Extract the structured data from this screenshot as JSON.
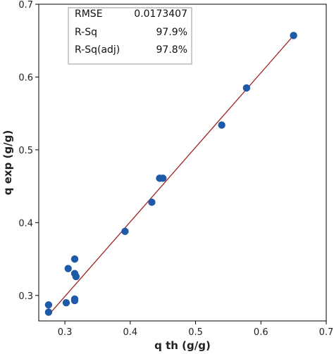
{
  "chart_data": {
    "type": "scatter",
    "xlabel": "q th (g/g)",
    "ylabel": "q exp (g/g)",
    "xlim": [
      0.26,
      0.7
    ],
    "ylim": [
      0.265,
      0.7
    ],
    "x_ticks": [
      "0.3",
      "0.4",
      "0.5",
      "0.6",
      "0.7"
    ],
    "y_ticks": [
      "0.3",
      "0.4",
      "0.5",
      "0.6",
      "0.7"
    ],
    "grid": false,
    "points": [
      {
        "x": 0.275,
        "y": 0.277
      },
      {
        "x": 0.275,
        "y": 0.287
      },
      {
        "x": 0.302,
        "y": 0.29
      },
      {
        "x": 0.315,
        "y": 0.295
      },
      {
        "x": 0.315,
        "y": 0.293
      },
      {
        "x": 0.305,
        "y": 0.337
      },
      {
        "x": 0.315,
        "y": 0.35
      },
      {
        "x": 0.315,
        "y": 0.33
      },
      {
        "x": 0.317,
        "y": 0.326
      },
      {
        "x": 0.392,
        "y": 0.388
      },
      {
        "x": 0.433,
        "y": 0.428
      },
      {
        "x": 0.445,
        "y": 0.461
      },
      {
        "x": 0.45,
        "y": 0.461
      },
      {
        "x": 0.54,
        "y": 0.534
      },
      {
        "x": 0.578,
        "y": 0.585
      },
      {
        "x": 0.65,
        "y": 0.657
      }
    ],
    "fit_line": {
      "x": [
        0.275,
        0.65
      ],
      "y": [
        0.273,
        0.657
      ]
    },
    "colors": {
      "points": "#1f5aa8",
      "fit_line": "#a52020",
      "box_border": "#999999"
    },
    "stats_box": {
      "placement": "top-left",
      "rows": [
        {
          "label": "RMSE",
          "value": "0.0173407"
        },
        {
          "label": "R-Sq",
          "value": "97.9%"
        },
        {
          "label": "R-Sq(adj)",
          "value": "97.8%"
        }
      ]
    }
  }
}
